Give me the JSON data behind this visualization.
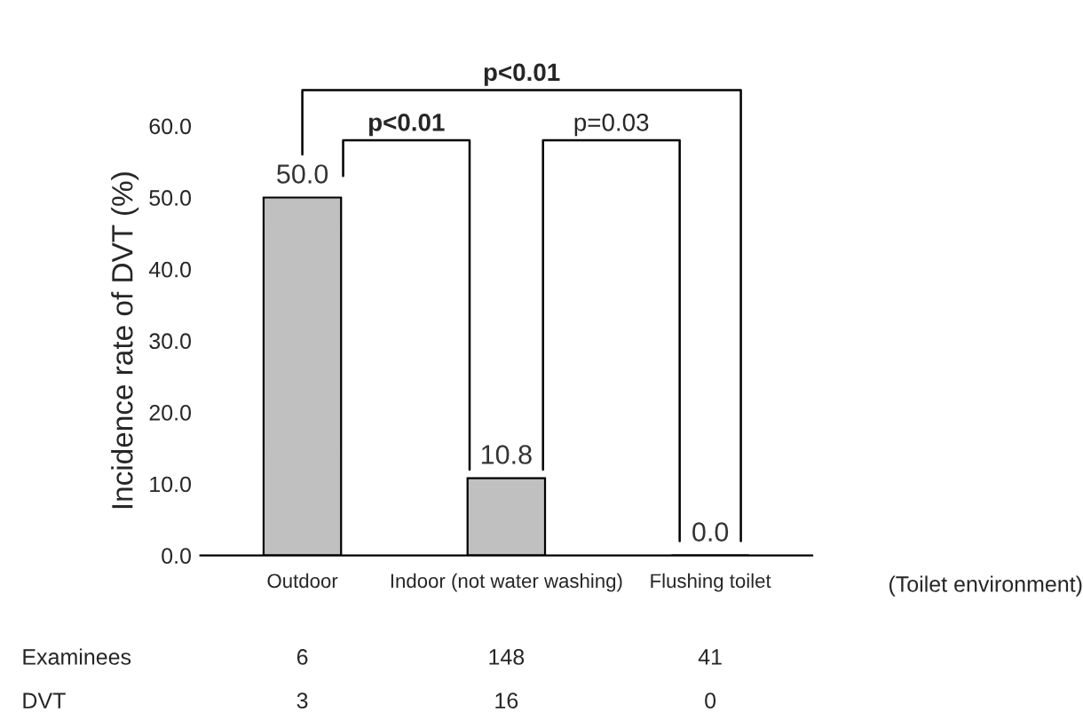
{
  "chart_data": {
    "type": "bar",
    "categories": [
      "Outdoor",
      "Indoor (not water washing)",
      "Flushing toilet"
    ],
    "values": [
      50.0,
      10.8,
      0.0
    ],
    "color": "#c0c0c0",
    "value_labels": [
      "50.0",
      "10.8",
      "0.0"
    ],
    "ylabel": "Incidence rate of DVT (%)",
    "xlabel": "(Toilet environment)",
    "ylim": [
      0,
      60
    ],
    "yticks": [
      {
        "value": 0,
        "label": "0.0"
      },
      {
        "value": 10,
        "label": "10.0"
      },
      {
        "value": 20,
        "label": "20.0"
      },
      {
        "value": 30,
        "label": "30.0"
      },
      {
        "value": 40,
        "label": "40.0"
      },
      {
        "value": 50,
        "label": "50.0"
      },
      {
        "value": 60,
        "label": "60.0"
      }
    ],
    "grid": false,
    "annotations": [
      "p<0.01",
      "p=0.03",
      "p<0.01",
      "Examinees",
      "6",
      "148",
      "41",
      "DVT",
      "3",
      "16",
      "0"
    ]
  }
}
